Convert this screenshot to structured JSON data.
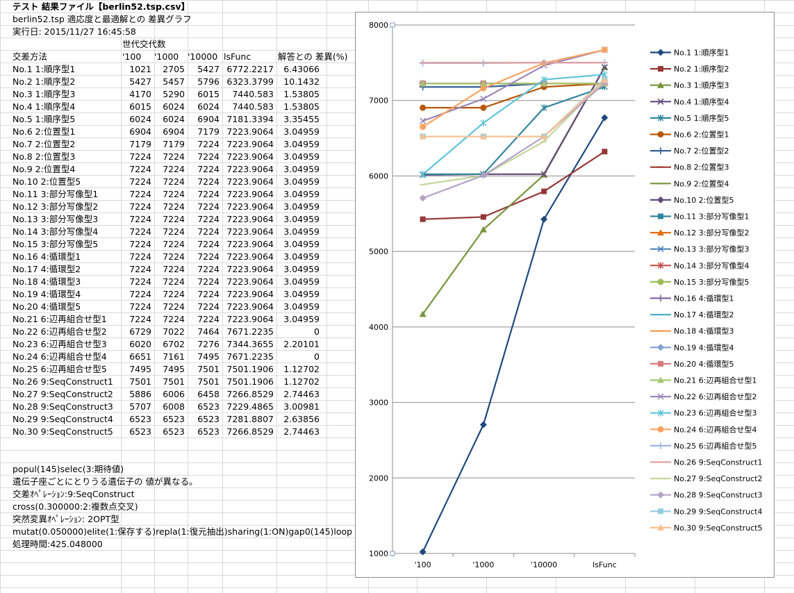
{
  "sheet": {
    "title": "テスト 結果ファイル【berlin52.tsp.csv】",
    "subtitle": "berlin52.tsp 適応度と最適解との 差異グラフ",
    "run_date": "実行日: 2015/11/27 16:45:58",
    "generations_header": "世代交代数",
    "columns": [
      "交差方法",
      "'100",
      "'1000",
      "'10000",
      "lsFunc",
      "解答との 差異(%)"
    ],
    "rows": [
      [
        "No.1 1:順序型1",
        "1021",
        "2705",
        "5427",
        "6772.2217",
        "6.43066"
      ],
      [
        "No.2 1:順序型2",
        "5427",
        "5457",
        "5796",
        "6323.3799",
        "10.1432"
      ],
      [
        "No.3 1:順序型3",
        "4170",
        "5290",
        "6015",
        "7440.583",
        "1.53805"
      ],
      [
        "No.4 1:順序型4",
        "6015",
        "6024",
        "6024",
        "7440.583",
        "1.53805"
      ],
      [
        "No.5 1:順序型5",
        "6024",
        "6024",
        "6904",
        "7181.3394",
        "3.35455"
      ],
      [
        "No.6 2:位置型1",
        "6904",
        "6904",
        "7179",
        "7223.9064",
        "3.04959"
      ],
      [
        "No.7 2:位置型2",
        "7179",
        "7179",
        "7224",
        "7223.9064",
        "3.04959"
      ],
      [
        "No.8 2:位置型3",
        "7224",
        "7224",
        "7224",
        "7223.9064",
        "3.04959"
      ],
      [
        "No.9 2:位置型4",
        "7224",
        "7224",
        "7224",
        "7223.9064",
        "3.04959"
      ],
      [
        "No.10 2:位置型5",
        "7224",
        "7224",
        "7224",
        "7223.9064",
        "3.04959"
      ],
      [
        "No.11 3:部分写像型1",
        "7224",
        "7224",
        "7224",
        "7223.9064",
        "3.04959"
      ],
      [
        "No.12 3:部分写像型2",
        "7224",
        "7224",
        "7224",
        "7223.9064",
        "3.04959"
      ],
      [
        "No.13 3:部分写像型3",
        "7224",
        "7224",
        "7224",
        "7223.9064",
        "3.04959"
      ],
      [
        "No.14 3:部分写像型4",
        "7224",
        "7224",
        "7224",
        "7223.9064",
        "3.04959"
      ],
      [
        "No.15 3:部分写像型5",
        "7224",
        "7224",
        "7224",
        "7223.9064",
        "3.04959"
      ],
      [
        "No.16 4:循環型1",
        "7224",
        "7224",
        "7224",
        "7223.9064",
        "3.04959"
      ],
      [
        "No.17 4:循環型2",
        "7224",
        "7224",
        "7224",
        "7223.9064",
        "3.04959"
      ],
      [
        "No.18 4:循環型3",
        "7224",
        "7224",
        "7224",
        "7223.9064",
        "3.04959"
      ],
      [
        "No.19 4:循環型4",
        "7224",
        "7224",
        "7224",
        "7223.9064",
        "3.04959"
      ],
      [
        "No.20 4:循環型5",
        "7224",
        "7224",
        "7224",
        "7223.9064",
        "3.04959"
      ],
      [
        "No.21 6:辺再組合せ型1",
        "7224",
        "7224",
        "7224",
        "7223.9064",
        "3.04959"
      ],
      [
        "No.22 6:辺再組合せ型2",
        "6729",
        "7022",
        "7464",
        "7671.2235",
        "0"
      ],
      [
        "No.23 6:辺再組合せ型3",
        "6020",
        "6702",
        "7276",
        "7344.3655",
        "2.20101"
      ],
      [
        "No.24 6:辺再組合せ型4",
        "6651",
        "7161",
        "7495",
        "7671.2235",
        "0"
      ],
      [
        "No.25 6:辺再組合せ型5",
        "7495",
        "7495",
        "7501",
        "7501.1906",
        "1.12702"
      ],
      [
        "No.26 9:SeqConstruct1",
        "7501",
        "7501",
        "7501",
        "7501.1906",
        "1.12702"
      ],
      [
        "No.27 9:SeqConstruct2",
        "5886",
        "6006",
        "6458",
        "7266.8529",
        "2.74463"
      ],
      [
        "No.28 9:SeqConstruct3",
        "5707",
        "6008",
        "6523",
        "7229.4865",
        "3.00981"
      ],
      [
        "No.29 9:SeqConstruct4",
        "6523",
        "6523",
        "6523",
        "7281.8807",
        "2.63856"
      ],
      [
        "No.30 9:SeqConstruct5",
        "6523",
        "6523",
        "6523",
        "7266.8529",
        "2.74463"
      ]
    ],
    "notes": [
      "popul(145)selec(3:期待値)",
      "遺伝子座ごとにとりうる遺伝子の 値が異なる。",
      "交差ｵﾍﾟﾚｰｼｮﾝ:9:SeqConstruct",
      "cross(0.300000:2:複数点交叉)",
      "突然変異ｵﾍﾟﾚｰｼｮﾝ: 2OPT型",
      "mutat(0.050000)elite(1:保存する)repla(1:復元抽出)sharing(1:ON)gap0(145)loop",
      "処理時間:425.048000"
    ]
  },
  "chart_data": {
    "type": "line",
    "categories": [
      "'100",
      "'1000",
      "'10000",
      "lsFunc"
    ],
    "ylim": [
      1000,
      8000
    ],
    "yticks": [
      "1000",
      "2000",
      "3000",
      "4000",
      "5000",
      "6000",
      "7000",
      "8000"
    ],
    "grid": true,
    "legend_position": "right",
    "series": [
      {
        "name": "No.1 1:順序型1",
        "values": [
          1021,
          2705,
          5427,
          6772.2217
        ],
        "color": "#1f497d",
        "marker": "diamond"
      },
      {
        "name": "No.2 1:順序型2",
        "values": [
          5427,
          5457,
          5796,
          6323.3799
        ],
        "color": "#953735",
        "marker": "square"
      },
      {
        "name": "No.3 1:順序型3",
        "values": [
          4170,
          5290,
          6015,
          7440.583
        ],
        "color": "#77933c",
        "marker": "triangle"
      },
      {
        "name": "No.4 1:順序型4",
        "values": [
          6015,
          6024,
          6024,
          7440.583
        ],
        "color": "#604a7b",
        "marker": "x"
      },
      {
        "name": "No.5 1:順序型5",
        "values": [
          6024,
          6024,
          6904,
          7181.3394
        ],
        "color": "#31859c",
        "marker": "star"
      },
      {
        "name": "No.6 2:位置型1",
        "values": [
          6904,
          6904,
          7179,
          7223.9064
        ],
        "color": "#b65708",
        "marker": "circle"
      },
      {
        "name": "No.7 2:位置型2",
        "values": [
          7179,
          7179,
          7224,
          7223.9064
        ],
        "color": "#366092",
        "marker": "plus"
      },
      {
        "name": "No.8 2:位置型3",
        "values": [
          7224,
          7224,
          7224,
          7223.9064
        ],
        "color": "#a0312b",
        "marker": "dash"
      },
      {
        "name": "No.9 2:位置型4",
        "values": [
          7224,
          7224,
          7224,
          7223.9064
        ],
        "color": "#76923c",
        "marker": "dash"
      },
      {
        "name": "No.10 2:位置型5",
        "values": [
          7224,
          7224,
          7224,
          7223.9064
        ],
        "color": "#5f497a",
        "marker": "diamond"
      },
      {
        "name": "No.11 3:部分写像型1",
        "values": [
          7224,
          7224,
          7224,
          7223.9064
        ],
        "color": "#31849b",
        "marker": "square"
      },
      {
        "name": "No.12 3:部分写像型2",
        "values": [
          7224,
          7224,
          7224,
          7223.9064
        ],
        "color": "#e46c0a",
        "marker": "triangle"
      },
      {
        "name": "No.13 3:部分写像型3",
        "values": [
          7224,
          7224,
          7224,
          7223.9064
        ],
        "color": "#4f81bd",
        "marker": "x"
      },
      {
        "name": "No.14 3:部分写像型4",
        "values": [
          7224,
          7224,
          7224,
          7223.9064
        ],
        "color": "#c0504d",
        "marker": "star"
      },
      {
        "name": "No.15 3:部分写像型5",
        "values": [
          7224,
          7224,
          7224,
          7223.9064
        ],
        "color": "#9bbb59",
        "marker": "circle"
      },
      {
        "name": "No.16 4:循環型1",
        "values": [
          7224,
          7224,
          7224,
          7223.9064
        ],
        "color": "#8064a2",
        "marker": "plus"
      },
      {
        "name": "No.17 4:循環型2",
        "values": [
          7224,
          7224,
          7224,
          7223.9064
        ],
        "color": "#4bacc6",
        "marker": "dash"
      },
      {
        "name": "No.18 4:循環型3",
        "values": [
          7224,
          7224,
          7224,
          7223.9064
        ],
        "color": "#f79646",
        "marker": "dash"
      },
      {
        "name": "No.19 4:循環型4",
        "values": [
          7224,
          7224,
          7224,
          7223.9064
        ],
        "color": "#7f9fd0",
        "marker": "diamond"
      },
      {
        "name": "No.20 4:循環型5",
        "values": [
          7224,
          7224,
          7224,
          7223.9064
        ],
        "color": "#d9787a",
        "marker": "square"
      },
      {
        "name": "No.21 6:辺再組合せ型1",
        "values": [
          7224,
          7224,
          7224,
          7223.9064
        ],
        "color": "#a6c771",
        "marker": "triangle"
      },
      {
        "name": "No.22 6:辺再組合せ型2",
        "values": [
          6729,
          7022,
          7464,
          7671.2235
        ],
        "color": "#9b87ba",
        "marker": "x"
      },
      {
        "name": "No.23 6:辺再組合せ型3",
        "values": [
          6020,
          6702,
          7276,
          7344.3655
        ],
        "color": "#5ec4d9",
        "marker": "star"
      },
      {
        "name": "No.24 6:辺再組合せ型4",
        "values": [
          6651,
          7161,
          7495,
          7671.2235
        ],
        "color": "#fba262",
        "marker": "circle"
      },
      {
        "name": "No.25 6:辺再組合せ型5",
        "values": [
          7495,
          7495,
          7501,
          7501.1906
        ],
        "color": "#9db4dc",
        "marker": "plus"
      },
      {
        "name": "No.26 9:SeqConstruct1",
        "values": [
          7501,
          7501,
          7501,
          7501.1906
        ],
        "color": "#e0a09f",
        "marker": "dash"
      },
      {
        "name": "No.27 9:SeqConstruct2",
        "values": [
          5886,
          6006,
          6458,
          7266.8529
        ],
        "color": "#c3d69b",
        "marker": "dash"
      },
      {
        "name": "No.28 9:SeqConstruct3",
        "values": [
          5707,
          6008,
          6523,
          7229.4865
        ],
        "color": "#b2a2c7",
        "marker": "diamond"
      },
      {
        "name": "No.29 9:SeqConstruct4",
        "values": [
          6523,
          6523,
          6523,
          7281.8807
        ],
        "color": "#93cddd",
        "marker": "square"
      },
      {
        "name": "No.30 9:SeqConstruct5",
        "values": [
          6523,
          6523,
          6523,
          7266.8529
        ],
        "color": "#fac090",
        "marker": "triangle"
      }
    ]
  }
}
